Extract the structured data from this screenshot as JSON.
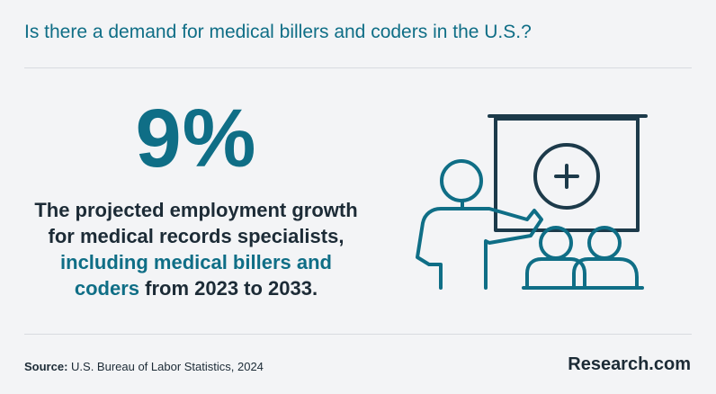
{
  "header": {
    "title": "Is there a demand for medical billers and coders in the U.S.?"
  },
  "stat": {
    "value": "9%",
    "line1": "The projected employment growth",
    "line2": "for medical records specialists,",
    "line3_highlight": "including medical billers and",
    "line4_highlight": "coders",
    "line4_rest": " from 2023 to 2033."
  },
  "illustration": {
    "icon": "presentation-medical-icon",
    "stroke_dark": "#1c3a4a",
    "stroke_accent": "#0f6e86"
  },
  "footer": {
    "source_label": "Source:",
    "source_text": " U.S. Bureau of Labor Statistics, 2024",
    "brand": "Research.com"
  },
  "colors": {
    "accent": "#0f6e86",
    "text": "#1c2b36",
    "background": "#f3f4f6",
    "divider": "#d8dbe0"
  }
}
